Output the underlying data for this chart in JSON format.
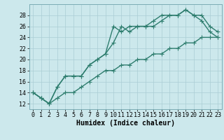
{
  "title": "",
  "xlabel": "Humidex (Indice chaleur)",
  "ylabel": "",
  "x_values": [
    0,
    1,
    2,
    3,
    4,
    5,
    6,
    7,
    8,
    9,
    10,
    11,
    12,
    13,
    14,
    15,
    16,
    17,
    18,
    19,
    20,
    21,
    22,
    23
  ],
  "line1": [
    14,
    13,
    12,
    15,
    17,
    17,
    17,
    19,
    20,
    21,
    26,
    25,
    26,
    26,
    26,
    27,
    28,
    28,
    28,
    29,
    28,
    27,
    25,
    24
  ],
  "line2": [
    14,
    13,
    12,
    13,
    14,
    14,
    15,
    16,
    17,
    18,
    18,
    19,
    19,
    20,
    20,
    21,
    21,
    22,
    22,
    23,
    23,
    24,
    24,
    24
  ],
  "line3": [
    14,
    13,
    12,
    15,
    17,
    17,
    17,
    19,
    20,
    21,
    23,
    26,
    25,
    26,
    26,
    26,
    27,
    28,
    28,
    29,
    28,
    28,
    26,
    25
  ],
  "line_color": "#2e7d6e",
  "bg_color": "#cce8ec",
  "grid_color": "#aacdd4",
  "ylim": [
    11,
    30
  ],
  "xlim": [
    -0.5,
    23.5
  ],
  "yticks": [
    12,
    14,
    16,
    18,
    20,
    22,
    24,
    26,
    28
  ],
  "xticks": [
    0,
    1,
    2,
    3,
    4,
    5,
    6,
    7,
    8,
    9,
    10,
    11,
    12,
    13,
    14,
    15,
    16,
    17,
    18,
    19,
    20,
    21,
    22,
    23
  ],
  "marker": "+",
  "markersize": 4,
  "linewidth": 1.0,
  "fontsize_label": 7,
  "fontsize_tick": 6
}
